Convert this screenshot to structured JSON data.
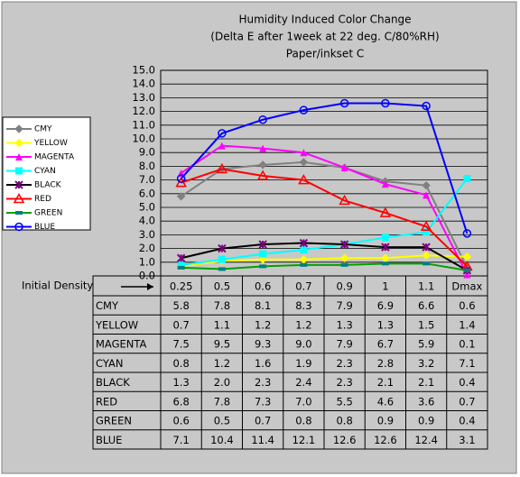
{
  "chart_data": {
    "type": "line",
    "title": [
      "Humidity Induced Color Change",
      "(Delta E after 1week at 22 deg. C/80%RH)",
      "Paper/inkset C"
    ],
    "x_label": "Initial Density",
    "categories": [
      "0.25",
      "0.5",
      "0.6",
      "0.7",
      "0.9",
      "1",
      "1.1",
      "Dmax"
    ],
    "ylim": [
      0,
      15
    ],
    "yticks": [
      {
        "value": 0,
        "label": "0.0"
      },
      {
        "value": 1,
        "label": "1.0"
      },
      {
        "value": 2,
        "label": "2.0"
      },
      {
        "value": 3,
        "label": "3.0"
      },
      {
        "value": 4,
        "label": "4.0"
      },
      {
        "value": 5,
        "label": "5.0"
      },
      {
        "value": 6,
        "label": "6.0"
      },
      {
        "value": 7,
        "label": "7.0"
      },
      {
        "value": 8,
        "label": "8.0"
      },
      {
        "value": 9,
        "label": "9.0"
      },
      {
        "value": 10,
        "label": "10.0"
      },
      {
        "value": 11,
        "label": "11.0"
      },
      {
        "value": 12,
        "label": "12.0"
      },
      {
        "value": 13,
        "label": "13.0"
      },
      {
        "value": 14,
        "label": "14.0"
      },
      {
        "value": 15,
        "label": "15.0"
      }
    ],
    "grid": true,
    "legend": "left",
    "series": [
      {
        "name": "CMY",
        "color": "#808080",
        "values": [
          5.8,
          7.8,
          8.1,
          8.3,
          7.9,
          6.9,
          6.6,
          0.6
        ]
      },
      {
        "name": "YELLOW",
        "color": "#ffff00",
        "values": [
          0.7,
          1.1,
          1.2,
          1.2,
          1.3,
          1.3,
          1.5,
          1.4
        ]
      },
      {
        "name": "MAGENTA",
        "color": "#ff00ff",
        "values": [
          7.5,
          9.5,
          9.3,
          9,
          7.9,
          6.7,
          5.9,
          0.1
        ],
        "value_labels": [
          "7.5",
          "9.5",
          "9.3",
          "9.0",
          "7.9",
          "6.7",
          "5.9",
          "0.1"
        ]
      },
      {
        "name": "CYAN",
        "color": "#00ffff",
        "values": [
          0.8,
          1.2,
          1.6,
          1.9,
          2.3,
          2.8,
          3.2,
          7.1
        ]
      },
      {
        "name": "BLACK",
        "color": "#000000",
        "values": [
          1.3,
          2,
          2.3,
          2.4,
          2.3,
          2.1,
          2.1,
          0.4
        ],
        "value_labels": [
          "1.3",
          "2.0",
          "2.3",
          "2.4",
          "2.3",
          "2.1",
          "2.1",
          "0.4"
        ]
      },
      {
        "name": "RED",
        "color": "#ff0000",
        "values": [
          6.8,
          7.8,
          7.3,
          7,
          5.5,
          4.6,
          3.6,
          0.7
        ],
        "value_labels": [
          "6.8",
          "7.8",
          "7.3",
          "7.0",
          "5.5",
          "4.6",
          "3.6",
          "0.7"
        ]
      },
      {
        "name": "GREEN",
        "color": "#00a000",
        "values": [
          0.6,
          0.5,
          0.7,
          0.8,
          0.8,
          0.9,
          0.9,
          0.4
        ]
      },
      {
        "name": "BLUE",
        "color": "#0000ff",
        "values": [
          7.1,
          10.4,
          11.4,
          12.1,
          12.6,
          12.6,
          12.4,
          3.1
        ]
      }
    ]
  }
}
